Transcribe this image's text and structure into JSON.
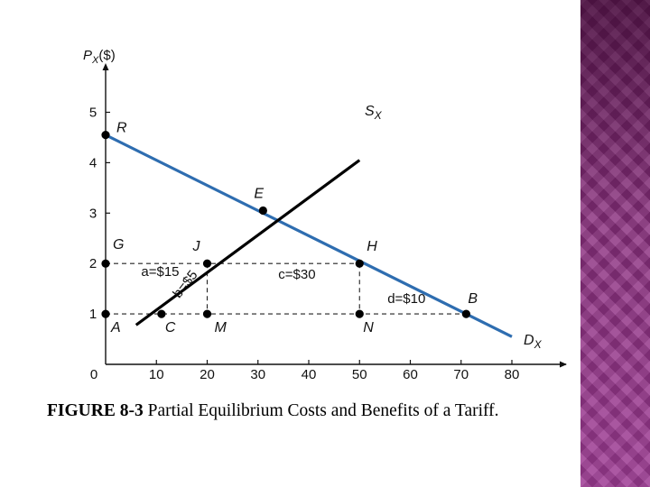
{
  "caption": {
    "number": "FIGURE 8-3",
    "text": " Partial Equilibrium Costs and Benefits of a Tariff."
  },
  "colors": {
    "demand": "#2e6db0",
    "supply": "#000000",
    "axis": "#111111",
    "side_band": "#8a2f7e"
  },
  "chart_data": {
    "type": "line",
    "xlim": [
      0,
      80
    ],
    "ylim": [
      0,
      5
    ],
    "x_ticks": [
      0,
      10,
      20,
      30,
      40,
      50,
      60,
      70,
      80
    ],
    "y_ticks": [
      1,
      2,
      3,
      4,
      5
    ],
    "ylabel_main": "P",
    "ylabel_sub": "X",
    "ylabel_unit": "($)",
    "series": [
      {
        "id": "demand",
        "label_main": "D",
        "label_sub": "X",
        "points": [
          [
            0,
            4.55
          ],
          [
            80,
            0.55
          ]
        ]
      },
      {
        "id": "supply",
        "label_main": "S",
        "label_sub": "X",
        "points": [
          [
            6,
            0.78
          ],
          [
            50,
            4.05
          ]
        ]
      }
    ],
    "points": [
      {
        "label": "R",
        "x": 0,
        "y": 4.55
      },
      {
        "label": "E",
        "x": 31,
        "y": 3.05
      },
      {
        "label": "G",
        "x": 0,
        "y": 2
      },
      {
        "label": "J",
        "x": 20,
        "y": 2
      },
      {
        "label": "H",
        "x": 50,
        "y": 2
      },
      {
        "label": "A",
        "x": 0,
        "y": 1
      },
      {
        "label": "C",
        "x": 11,
        "y": 1
      },
      {
        "label": "M",
        "x": 20,
        "y": 1
      },
      {
        "label": "N",
        "x": 50,
        "y": 1
      },
      {
        "label": "B",
        "x": 71,
        "y": 1
      }
    ],
    "dashed_lines": [
      [
        [
          0,
          2
        ],
        [
          50,
          2
        ]
      ],
      [
        [
          0,
          1
        ],
        [
          71,
          1
        ]
      ],
      [
        [
          20,
          2
        ],
        [
          20,
          1
        ]
      ],
      [
        [
          50,
          2
        ],
        [
          50,
          1
        ]
      ]
    ],
    "area_labels": [
      {
        "text": "a=$15",
        "x": 7,
        "y": 1.75
      },
      {
        "text": "b=$5",
        "x": 14.5,
        "y": 1.3,
        "angle": -52
      },
      {
        "text": "c=$30",
        "x": 34,
        "y": 1.7
      },
      {
        "text": "d=$10",
        "x": 55.5,
        "y": 1.22
      }
    ]
  }
}
